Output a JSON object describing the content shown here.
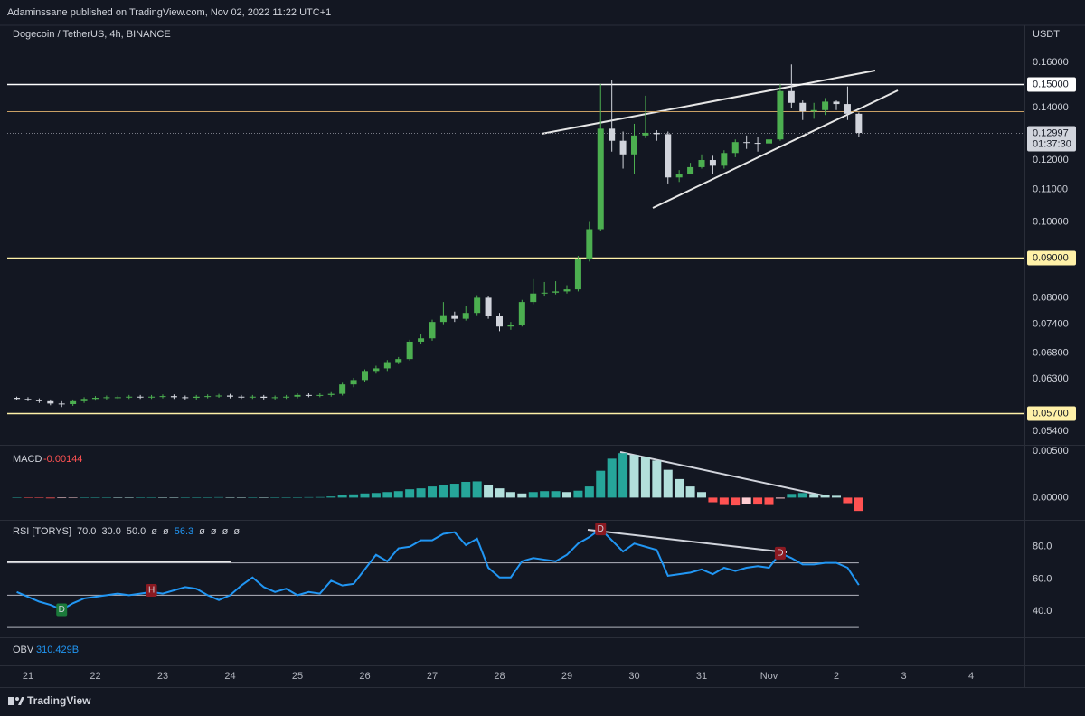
{
  "header": "Adaminssane published on TradingView.com, Nov 02, 2022 11:22 UTC+1",
  "footer": "TradingView",
  "chart_data": [
    {
      "type": "candlestick",
      "title": "Dogecoin / TetherUS, 4h, BINANCE",
      "axis_label": "USDT",
      "log": true,
      "up_color": "#4caf50",
      "down_color": "#d1d4dc",
      "xlim": [
        -7.4,
        355
      ],
      "xticks": [
        {
          "value": 0,
          "label": "21"
        },
        {
          "value": 24,
          "label": "22"
        },
        {
          "value": 48,
          "label": "23"
        },
        {
          "value": 72,
          "label": "24"
        },
        {
          "value": 96,
          "label": "25"
        },
        {
          "value": 120,
          "label": "26"
        },
        {
          "value": 144,
          "label": "27"
        },
        {
          "value": 168,
          "label": "28"
        },
        {
          "value": 192,
          "label": "29"
        },
        {
          "value": 216,
          "label": "30"
        },
        {
          "value": 240,
          "label": "31"
        },
        {
          "value": 264,
          "label": "Nov"
        },
        {
          "value": 288,
          "label": "2"
        },
        {
          "value": 312,
          "label": "3"
        },
        {
          "value": 336,
          "label": "4"
        }
      ],
      "ylim": [
        0.0519,
        0.1784
      ],
      "yticks": [
        {
          "value": 0.16,
          "label": "0.16000"
        },
        {
          "value": 0.14,
          "label": "0.14000"
        },
        {
          "value": 0.12,
          "label": "0.12000"
        },
        {
          "value": 0.11,
          "label": "0.11000"
        },
        {
          "value": 0.1,
          "label": "0.10000"
        },
        {
          "value": 0.08,
          "label": "0.08000"
        },
        {
          "value": 0.074,
          "label": "0.07400"
        },
        {
          "value": 0.068,
          "label": "0.06800"
        },
        {
          "value": 0.063,
          "label": "0.06300"
        },
        {
          "value": 0.054,
          "label": "0.05400"
        }
      ],
      "levels": [
        {
          "value": 0.15,
          "label": "0.15000",
          "color": "#ffffff"
        },
        {
          "value": 0.1385,
          "color": "#c9a065"
        },
        {
          "value": 0.09,
          "label": "0.09000",
          "color": "#fff1a8"
        },
        {
          "value": 0.057,
          "label": "0.05700",
          "color": "#fff1a8"
        }
      ],
      "last": {
        "value": 0.12997,
        "countdown": "01:37:30"
      },
      "x": [
        -4,
        0,
        4,
        8,
        12,
        16,
        20,
        24,
        28,
        32,
        36,
        40,
        44,
        48,
        52,
        56,
        60,
        64,
        68,
        72,
        76,
        80,
        84,
        88,
        92,
        96,
        100,
        104,
        108,
        112,
        116,
        120,
        124,
        128,
        132,
        136,
        140,
        144,
        148,
        152,
        156,
        160,
        164,
        168,
        172,
        176,
        180,
        184,
        188,
        192,
        196,
        200,
        204,
        208,
        212,
        216,
        220,
        224,
        228,
        232,
        236,
        240,
        244,
        248,
        252,
        256,
        260,
        264,
        268,
        272,
        276,
        280,
        284,
        288,
        292,
        296
      ],
      "open": [
        0.0596,
        0.0594,
        0.0592,
        0.059,
        0.0586,
        0.0585,
        0.059,
        0.0594,
        0.0596,
        0.0597,
        0.0597,
        0.0598,
        0.0597,
        0.0598,
        0.0599,
        0.0597,
        0.0596,
        0.0598,
        0.0599,
        0.06,
        0.0598,
        0.0597,
        0.0598,
        0.0596,
        0.0597,
        0.0598,
        0.0601,
        0.06,
        0.0601,
        0.0603,
        0.062,
        0.0628,
        0.0645,
        0.065,
        0.0662,
        0.0668,
        0.0703,
        0.071,
        0.0745,
        0.076,
        0.0752,
        0.0765,
        0.08,
        0.0758,
        0.0735,
        0.0738,
        0.079,
        0.081,
        0.0812,
        0.0815,
        0.082,
        0.0897,
        0.0979,
        0.1316,
        0.127,
        0.122,
        0.129,
        0.13,
        0.1295,
        0.114,
        0.115,
        0.1175,
        0.12,
        0.118,
        0.1225,
        0.1265,
        0.1262,
        0.126,
        0.1275,
        0.147,
        0.142,
        0.1385,
        0.139,
        0.1425,
        0.1415,
        0.1375
      ],
      "high": [
        0.0598,
        0.0597,
        0.0595,
        0.0593,
        0.059,
        0.0593,
        0.0597,
        0.0599,
        0.06,
        0.06,
        0.0601,
        0.0601,
        0.0601,
        0.0602,
        0.0602,
        0.06,
        0.0601,
        0.0602,
        0.0603,
        0.0603,
        0.0601,
        0.0601,
        0.0601,
        0.06,
        0.0601,
        0.0604,
        0.0604,
        0.0604,
        0.0606,
        0.0623,
        0.0632,
        0.0648,
        0.0655,
        0.0666,
        0.0672,
        0.0707,
        0.0718,
        0.075,
        0.079,
        0.0768,
        0.078,
        0.0806,
        0.0805,
        0.0765,
        0.0745,
        0.0795,
        0.0845,
        0.0838,
        0.084,
        0.083,
        0.0905,
        0.1,
        0.15,
        0.152,
        0.1305,
        0.1335,
        0.145,
        0.131,
        0.1305,
        0.1165,
        0.119,
        0.122,
        0.1215,
        0.1235,
        0.1275,
        0.129,
        0.1285,
        0.13,
        0.15,
        0.159,
        0.143,
        0.142,
        0.144,
        0.143,
        0.149,
        0.138
      ],
      "low": [
        0.0592,
        0.059,
        0.0587,
        0.0583,
        0.058,
        0.0582,
        0.0587,
        0.0591,
        0.0593,
        0.0594,
        0.0594,
        0.0594,
        0.0594,
        0.0595,
        0.0594,
        0.0593,
        0.0593,
        0.0595,
        0.0596,
        0.0595,
        0.0594,
        0.0594,
        0.0593,
        0.0593,
        0.0594,
        0.0595,
        0.0597,
        0.0597,
        0.0598,
        0.06,
        0.0615,
        0.0625,
        0.064,
        0.0645,
        0.0658,
        0.0665,
        0.0698,
        0.0705,
        0.074,
        0.0745,
        0.0748,
        0.076,
        0.0752,
        0.0725,
        0.0728,
        0.0735,
        0.0785,
        0.0805,
        0.0808,
        0.081,
        0.0815,
        0.089,
        0.0975,
        0.123,
        0.117,
        0.115,
        0.128,
        0.127,
        0.112,
        0.1125,
        0.115,
        0.117,
        0.115,
        0.117,
        0.121,
        0.124,
        0.123,
        0.125,
        0.127,
        0.14,
        0.135,
        0.1355,
        0.137,
        0.139,
        0.135,
        0.1285
      ],
      "close": [
        0.0594,
        0.0592,
        0.059,
        0.0586,
        0.0585,
        0.059,
        0.0594,
        0.0596,
        0.0597,
        0.0597,
        0.0598,
        0.0597,
        0.0598,
        0.0599,
        0.0597,
        0.0596,
        0.0598,
        0.0599,
        0.06,
        0.0598,
        0.0597,
        0.0598,
        0.0596,
        0.0597,
        0.0598,
        0.0601,
        0.06,
        0.0601,
        0.0603,
        0.062,
        0.0628,
        0.0645,
        0.065,
        0.0662,
        0.0668,
        0.0703,
        0.071,
        0.0745,
        0.076,
        0.0752,
        0.0765,
        0.08,
        0.0758,
        0.0735,
        0.0738,
        0.079,
        0.081,
        0.0812,
        0.0815,
        0.082,
        0.0897,
        0.0979,
        0.1316,
        0.127,
        0.122,
        0.129,
        0.13,
        0.1295,
        0.114,
        0.115,
        0.1175,
        0.12,
        0.118,
        0.1225,
        0.1265,
        0.1262,
        0.126,
        0.1275,
        0.147,
        0.142,
        0.1385,
        0.139,
        0.1425,
        0.1415,
        0.1375,
        0.12997
      ]
    },
    {
      "type": "bar",
      "name": "MACD",
      "ylim": [
        -0.0024,
        0.0056
      ],
      "yticks": [
        {
          "value": 0.005,
          "label": "0.00500"
        },
        {
          "value": 0,
          "label": "0.00000"
        }
      ],
      "colors": {
        "up_grow": "#26a69a",
        "up_fall": "#b2dfdb",
        "down_grow": "#ff5252",
        "down_fall": "#ffcdd2"
      },
      "values": [
        2e-05,
        -3e-05,
        -5e-05,
        -8e-05,
        -6e-05,
        -3e-05,
        1e-05,
        3e-05,
        4e-05,
        3e-05,
        2e-05,
        3e-05,
        4e-05,
        3e-05,
        2e-05,
        2e-05,
        3e-05,
        4e-05,
        5e-05,
        4e-05,
        3e-05,
        3e-05,
        2e-05,
        2e-05,
        3e-05,
        4e-05,
        5e-05,
        6e-05,
        0.00012,
        0.00025,
        0.00035,
        0.00045,
        0.0005,
        0.0006,
        0.0007,
        0.0009,
        0.001,
        0.0012,
        0.0014,
        0.0015,
        0.0017,
        0.00175,
        0.0014,
        0.001,
        0.0006,
        0.00045,
        0.0006,
        0.0007,
        0.0007,
        0.0006,
        0.00075,
        0.0012,
        0.0029,
        0.0042,
        0.0048,
        0.0046,
        0.0044,
        0.004,
        0.003,
        0.002,
        0.0012,
        0.0006,
        -0.0005,
        -0.0008,
        -0.00085,
        -0.0007,
        -0.00075,
        -0.0008,
        -0.0001,
        0.0004,
        0.0005,
        0.0004,
        0.0003,
        0.0002,
        -0.0006,
        -0.00144
      ]
    },
    {
      "type": "line",
      "name": "RSI [TORYS]",
      "inputs": [
        "70.0",
        "30.0",
        "50.0",
        "ø",
        "ø"
      ],
      "extra": [
        "ø",
        "ø",
        "ø",
        "ø"
      ],
      "color": "#2196f3",
      "ylim": [
        23.9,
        96.1
      ],
      "yticks": [
        {
          "value": 80,
          "label": "80.0"
        },
        {
          "value": 60,
          "label": "60.0"
        },
        {
          "value": 40,
          "label": "40.0"
        }
      ],
      "bands": [
        70,
        50,
        30
      ],
      "annotations": [
        {
          "text": "D",
          "x": 12,
          "y": 41,
          "color": "#1b7a3a"
        },
        {
          "text": "H",
          "x": 44,
          "y": 53,
          "color": "#8b1a22"
        },
        {
          "text": "D",
          "x": 204,
          "y": 91,
          "color": "#8b1a22"
        },
        {
          "text": "D",
          "x": 268,
          "y": 76,
          "color": "#8b1a22"
        }
      ],
      "values": [
        52,
        49,
        46,
        44,
        41,
        45,
        48,
        49,
        50,
        51,
        50,
        51,
        52,
        51,
        53,
        55,
        54,
        50,
        47,
        50,
        56,
        61,
        55,
        52,
        54,
        50,
        52,
        51,
        59,
        56,
        57,
        66,
        75,
        71,
        79,
        80,
        84,
        84,
        88,
        89,
        81,
        85,
        67,
        61,
        61,
        71,
        73,
        72,
        71,
        75,
        82,
        86,
        91,
        84,
        77,
        82,
        80,
        78,
        62,
        63,
        64,
        66,
        63,
        67,
        65,
        67,
        68,
        67,
        76,
        73,
        69,
        69,
        70,
        70,
        67,
        56.3
      ]
    },
    {
      "type": "indicator",
      "name": "OBV",
      "value": "310.429B",
      "color": "#2196f3"
    }
  ]
}
